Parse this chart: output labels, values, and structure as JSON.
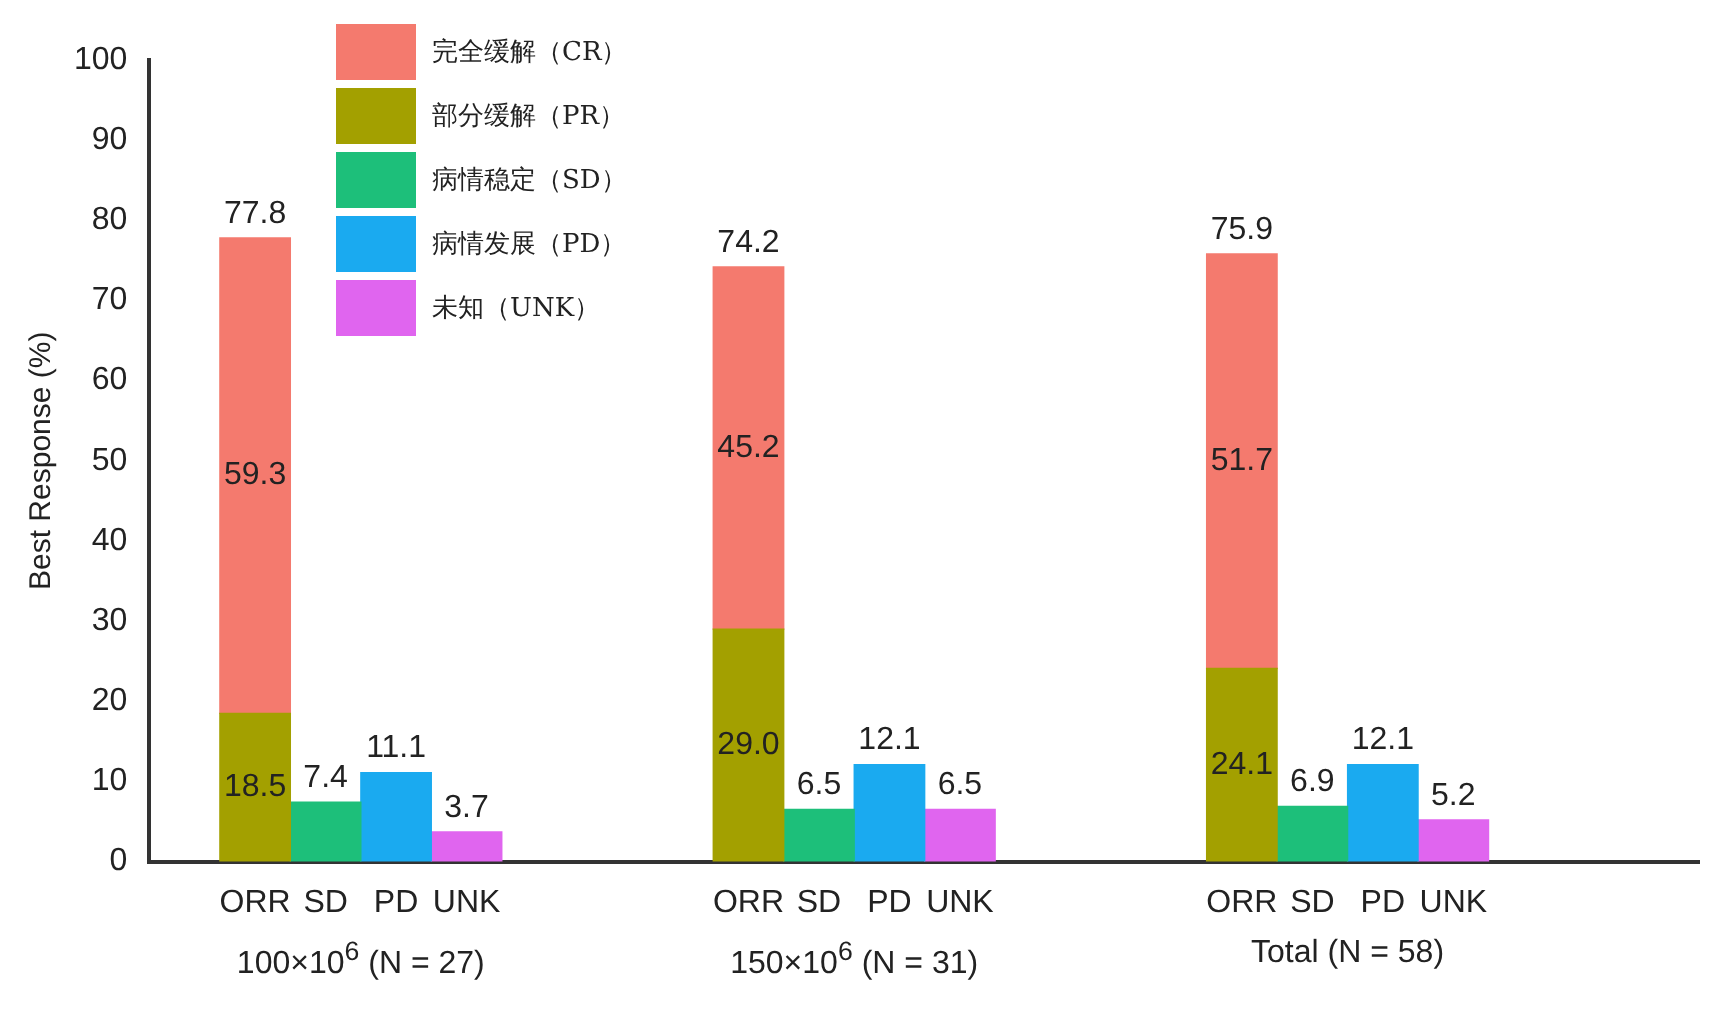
{
  "chart_data": {
    "type": "bar",
    "stacked": true,
    "ylabel": "Best Response (%)",
    "categories": [
      null,
      "ORR",
      "SD",
      "PD",
      "UNK",
      null,
      null,
      null,
      "ORR",
      "SD",
      "PD",
      "UNK",
      null,
      null,
      null,
      "ORR",
      "SD",
      "PD",
      "UNK",
      null,
      null,
      null
    ],
    "series": [
      {
        "name": "部分缓解（PR）",
        "color": "#a3a000",
        "values": [
          null,
          18.5,
          null,
          null,
          null,
          null,
          null,
          null,
          29.0,
          null,
          null,
          null,
          null,
          null,
          null,
          24.1,
          null,
          null,
          null,
          null,
          null,
          null
        ],
        "value_labels": [
          null,
          "18.5",
          null,
          null,
          null,
          null,
          null,
          null,
          "29.0",
          null,
          null,
          null,
          null,
          null,
          null,
          "24.1",
          null,
          null,
          null,
          null,
          null,
          null
        ]
      },
      {
        "name": "完全缓解（CR）",
        "color": "#f47a6e",
        "values": [
          null,
          59.3,
          null,
          null,
          null,
          null,
          null,
          null,
          45.2,
          null,
          null,
          null,
          null,
          null,
          null,
          51.7,
          null,
          null,
          null,
          null,
          null,
          null
        ]
      },
      {
        "name": "病情稳定（SD）",
        "color": "#1dbf7a",
        "values": [
          null,
          null,
          7.4,
          null,
          null,
          null,
          null,
          null,
          null,
          6.5,
          null,
          null,
          null,
          null,
          null,
          null,
          6.9,
          null,
          null,
          null,
          null,
          null
        ]
      },
      {
        "name": "病情发展（PD）",
        "color": "#1aaaf0",
        "values": [
          null,
          null,
          null,
          11.1,
          null,
          null,
          null,
          null,
          null,
          null,
          12.1,
          null,
          null,
          null,
          null,
          null,
          null,
          12.1,
          null,
          null,
          null,
          null
        ]
      },
      {
        "name": "未知（UNK）",
        "color": "#e065ef",
        "values": [
          null,
          null,
          null,
          null,
          3.7,
          null,
          null,
          null,
          null,
          null,
          null,
          6.5,
          null,
          null,
          null,
          null,
          null,
          null,
          5.2,
          null,
          null,
          null
        ]
      }
    ],
    "totals": [
      null,
      "77.8",
      null,
      null,
      null,
      null,
      null,
      null,
      "74.2",
      null,
      null,
      null,
      null,
      null,
      null,
      "75.9",
      null,
      null,
      null,
      null,
      null,
      null
    ],
    "data_labels": true,
    "ylim": [
      0,
      100
    ],
    "yticks": [
      0,
      10,
      20,
      30,
      40,
      50,
      60,
      70,
      80,
      90,
      100
    ],
    "legend": "top left",
    "annotations": [
      "100×10$^{6}$ (N = 27)",
      "150×10$^{6}$ (N = 31)",
      "Total (N = 58)"
    ]
  }
}
